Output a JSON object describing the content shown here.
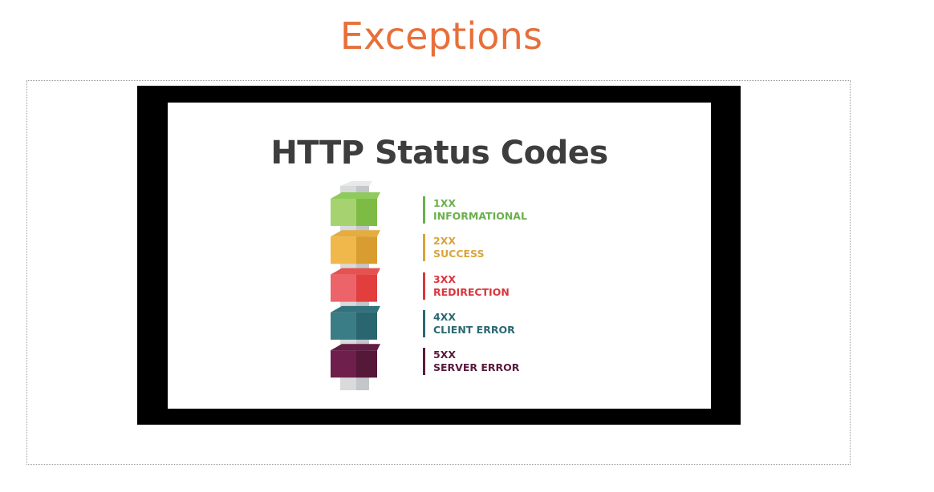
{
  "slide": {
    "title": "Exceptions"
  },
  "card": {
    "heading": "HTTP Status Codes",
    "colors": {
      "pillar": "#d8dadc",
      "pillar_dark": "#c4c7ca",
      "heading": "#3d3d3d"
    },
    "levels": [
      {
        "code": "1XX",
        "label": "INFORMATIONAL",
        "color": "#6ab04c",
        "front": "#a6d36f",
        "side": "#7dbb45",
        "top": "#8fca5c"
      },
      {
        "code": "2XX",
        "label": "SUCCESS",
        "color": "#d9a43a",
        "front": "#f0b84a",
        "side": "#d99d2f",
        "top": "#e6ac3e"
      },
      {
        "code": "3XX",
        "label": "REDIRECTION",
        "color": "#d9363e",
        "front": "#ec6469",
        "side": "#e23e3e",
        "top": "#e5524f"
      },
      {
        "code": "4XX",
        "label": "CLIENT ERROR",
        "color": "#2b6873",
        "front": "#3b7d86",
        "side": "#2a6670",
        "top": "#33727c"
      },
      {
        "code": "5XX",
        "label": "SERVER ERROR",
        "color": "#5a1a3e",
        "front": "#6e1f4c",
        "side": "#561839",
        "top": "#631c44"
      }
    ]
  }
}
